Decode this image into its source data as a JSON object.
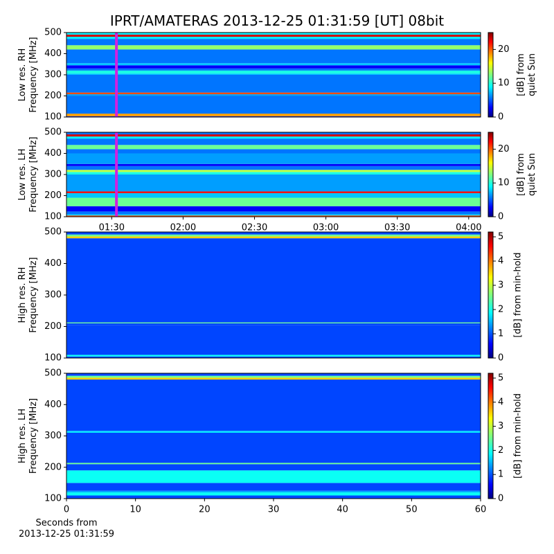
{
  "title": "IPRT/AMATERAS 2013-12-25 01:31:59 [UT]   08bit",
  "chart_data": [
    {
      "type": "heatmap",
      "ylabel": "Low res. RH\nFrequency [MHz]",
      "ylim": [
        100,
        500
      ],
      "yticks": [
        100,
        200,
        300,
        400,
        500
      ],
      "xlim": [
        "01:11",
        "04:05"
      ],
      "marker": "01:32",
      "y_edges": [
        100,
        104,
        116,
        200,
        208,
        216,
        300,
        306,
        320,
        330,
        345,
        355,
        400,
        420,
        440,
        470,
        480,
        490,
        500
      ],
      "values": [
        4,
        18,
        6,
        7,
        20,
        6,
        8,
        10,
        6,
        3,
        8,
        6,
        6,
        13,
        6,
        9,
        23,
        9
      ],
      "clim": [
        0,
        25
      ],
      "cticks": [
        0,
        10,
        20
      ],
      "clabel": "[dB] from\nquiet Sun"
    },
    {
      "type": "heatmap",
      "ylabel": "Low res. LH\nFrequency [MHz]",
      "ylim": [
        100,
        500
      ],
      "yticks": [
        100,
        200,
        300,
        400,
        500
      ],
      "xlim": [
        "01:11",
        "04:05"
      ],
      "xticks": [
        "01:30",
        "02:00",
        "02:30",
        "03:00",
        "03:30",
        "04:00"
      ],
      "marker": "01:32",
      "y_edges": [
        100,
        106,
        112,
        125,
        150,
        190,
        212,
        220,
        300,
        312,
        322,
        340,
        350,
        400,
        420,
        440,
        470,
        480,
        490,
        500
      ],
      "values": [
        20,
        8,
        6,
        3,
        12,
        8,
        22,
        7,
        10,
        14,
        6,
        3,
        7,
        6,
        12,
        6,
        9,
        23,
        6
      ],
      "clim": [
        0,
        25
      ],
      "cticks": [
        0,
        10,
        20
      ],
      "clabel": "[dB] from\nquiet Sun"
    },
    {
      "type": "heatmap",
      "ylabel": "High res. RH\nFrequency [MHz]",
      "ylim": [
        100,
        500
      ],
      "yticks": [
        100,
        200,
        300,
        400,
        500
      ],
      "xlim": [
        0,
        60
      ],
      "y_edges": [
        100,
        105,
        110,
        205,
        210,
        213,
        480,
        486,
        492,
        500
      ],
      "values": [
        1,
        2,
        1,
        1,
        2.5,
        1,
        3.5,
        2.5,
        1
      ],
      "clim": [
        0,
        5.2
      ],
      "cticks": [
        0,
        1,
        2,
        3,
        4,
        5
      ],
      "clabel": "[dB] from min-hold"
    },
    {
      "type": "heatmap",
      "ylabel": "High res. LH\nFrequency [MHz]",
      "ylim": [
        100,
        500
      ],
      "yticks": [
        100,
        200,
        300,
        400,
        500
      ],
      "xlim": [
        0,
        60
      ],
      "xticks": [
        0,
        10,
        20,
        30,
        40,
        50,
        60
      ],
      "xlabel": "Seconds from\n2013-12-25 01:31:59",
      "y_edges": [
        100,
        110,
        120,
        125,
        150,
        190,
        210,
        214,
        310,
        316,
        480,
        486,
        492,
        500
      ],
      "values": [
        1,
        2,
        1.5,
        1,
        2,
        1,
        2.5,
        1,
        1.8,
        1,
        3.5,
        2.5,
        1
      ],
      "clim": [
        0,
        5.2
      ],
      "cticks": [
        0,
        1,
        2,
        3,
        4,
        5
      ],
      "clabel": "[dB] from min-hold"
    }
  ]
}
